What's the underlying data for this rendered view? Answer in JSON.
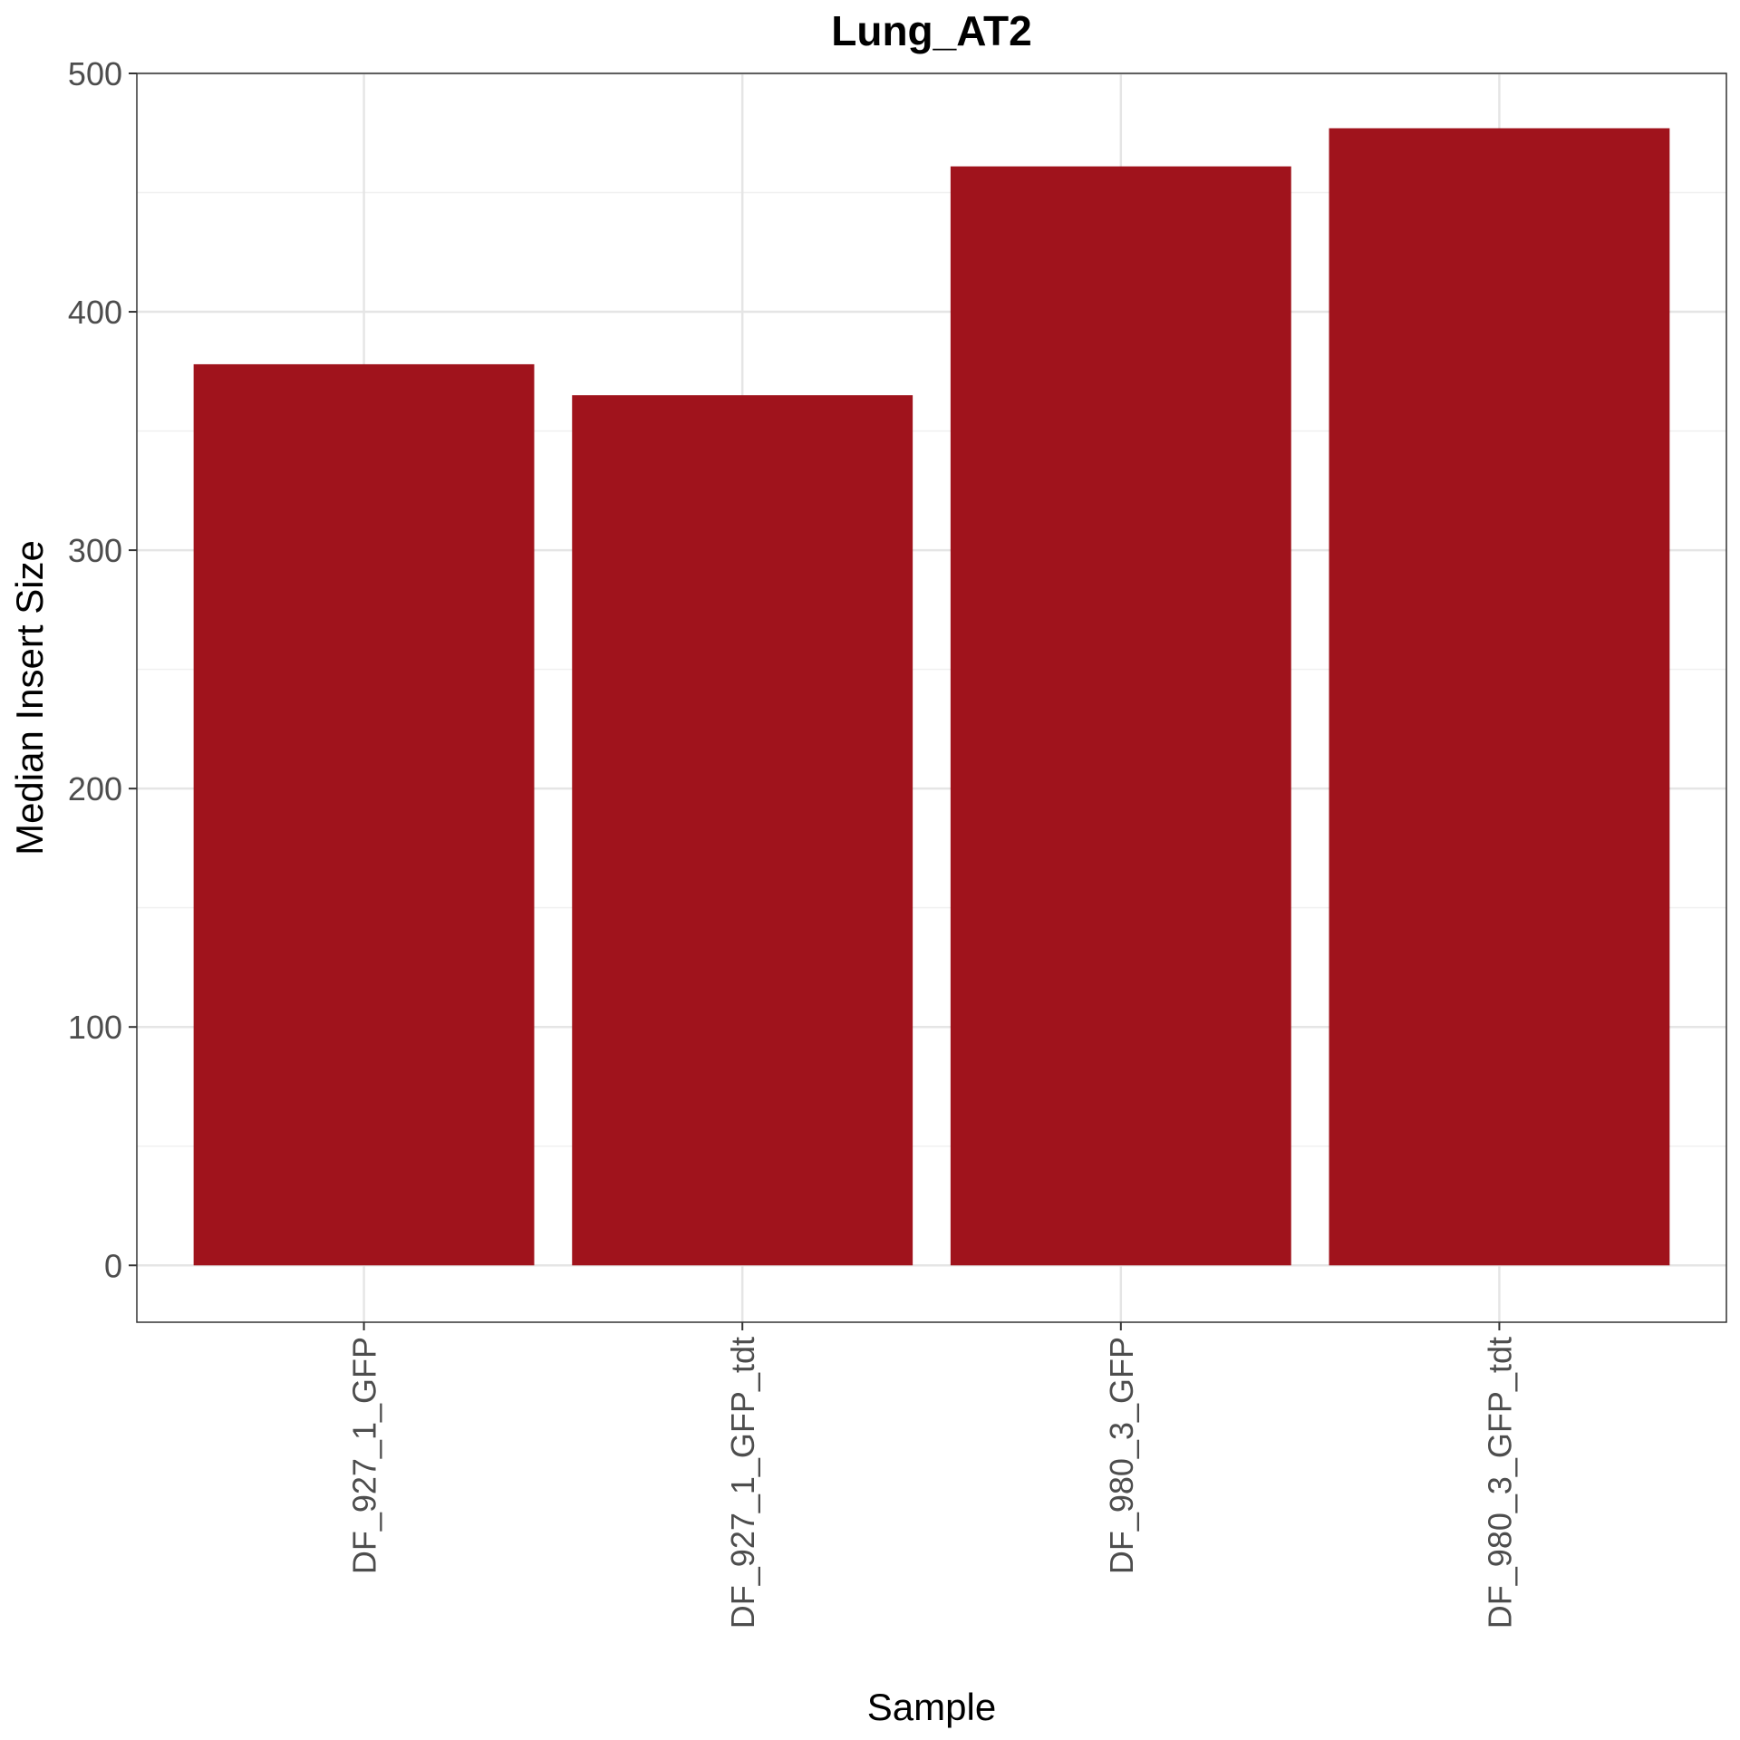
{
  "colors": {
    "bar": "#a0131c",
    "panel_background": "#ffffff",
    "grid_major": "#e5e5e5",
    "grid_minor": "#f0f0f0",
    "border": "#333333",
    "tick": "#333333"
  },
  "chart_data": {
    "type": "bar",
    "title": "Lung_AT2",
    "xlabel": "Sample",
    "ylabel": "Median Insert Size",
    "categories": [
      "DF_927_1_GFP",
      "DF_927_1_GFP_tdt",
      "DF_980_3_GFP",
      "DF_980_3_GFP_tdt"
    ],
    "values": [
      378,
      365,
      461,
      477
    ],
    "ylim": [
      -23.85,
      500
    ],
    "y_ticks": [
      0,
      100,
      200,
      300,
      400,
      500
    ],
    "y_minor_ticks": [
      50,
      150,
      250,
      350,
      450
    ],
    "grid": true,
    "legend": "none",
    "x_tick_label_rotation": "vertical"
  }
}
